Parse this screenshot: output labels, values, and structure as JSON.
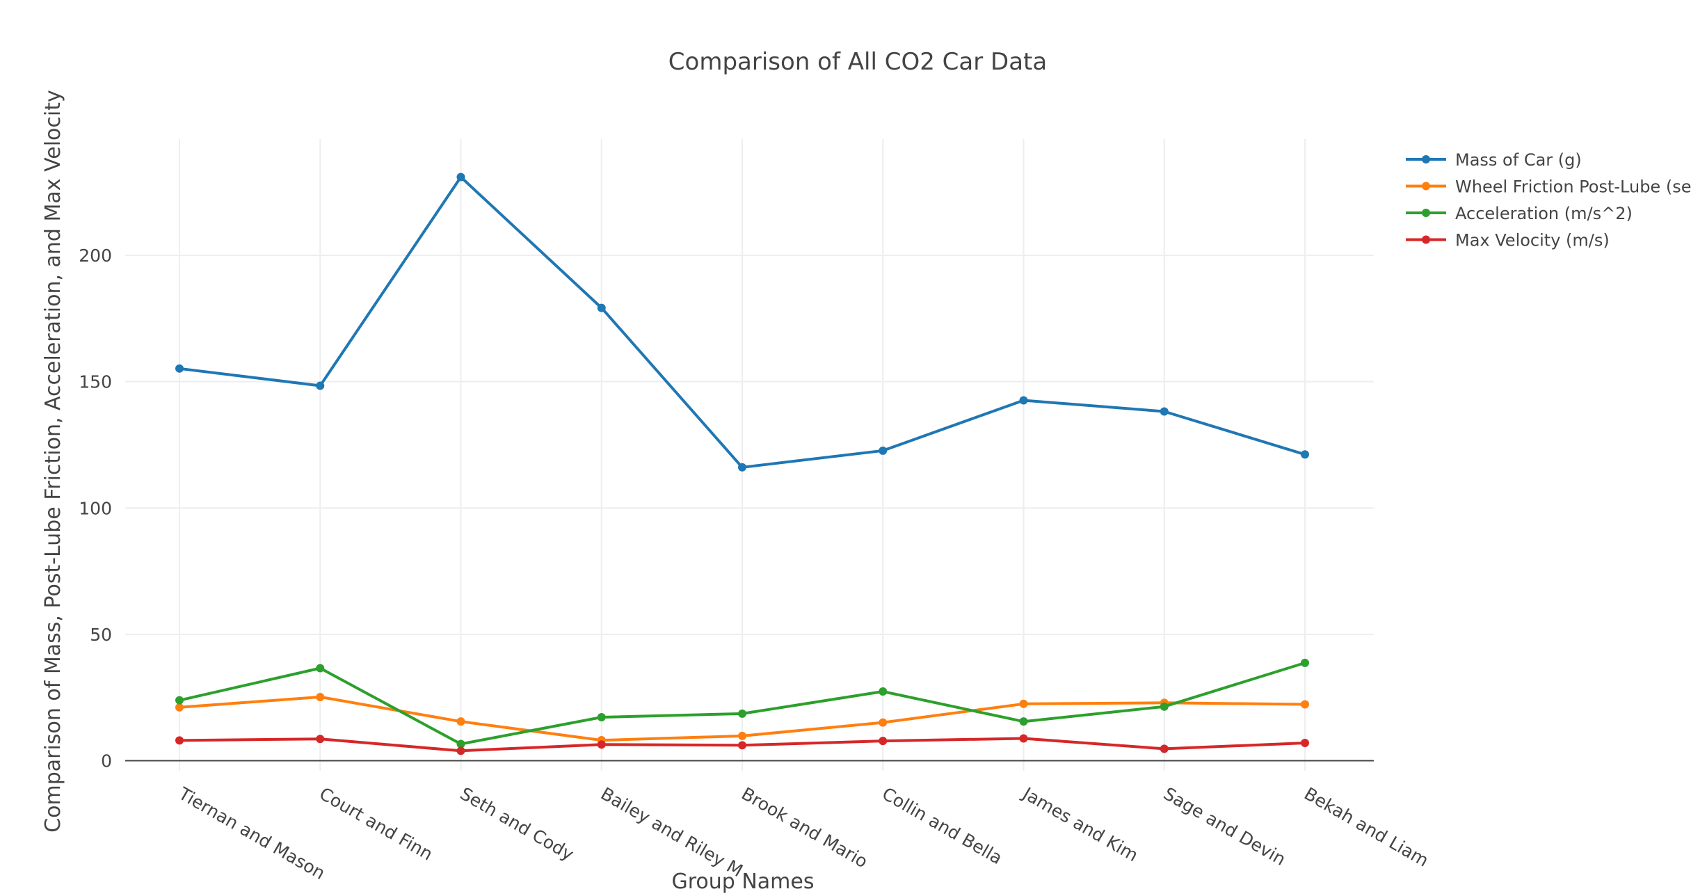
{
  "chart_data": {
    "type": "line",
    "title": "Comparison of All CO2 Car Data",
    "xlabel": "Group Names",
    "ylabel": "Comparison of Mass, Post-Lube Friction, Acceleration, and Max Velocity",
    "categories": [
      "Tiernan and Mason",
      "Court and Finn",
      "Seth and Cody",
      "Bailey and Riley M",
      "Brook and Mario",
      "Collin and Bella",
      "James and Kim",
      "Sage and Devin",
      "Bekah and Liam"
    ],
    "ylim": [
      -4,
      246
    ],
    "yticks": [
      0,
      50,
      100,
      150,
      200
    ],
    "grid": true,
    "legend_position": "top-right",
    "series": [
      {
        "name": "Mass of Car (g)",
        "color": "#1f77b4",
        "values": [
          155.2,
          148.4,
          231.0,
          179.2,
          116.1,
          122.7,
          142.6,
          138.2,
          121.2
        ]
      },
      {
        "name": "Wheel Friction Post-Lube (se",
        "color": "#ff7f0e",
        "values": [
          21.1,
          25.2,
          15.5,
          8.1,
          9.8,
          15.1,
          22.5,
          22.9,
          22.3
        ]
      },
      {
        "name": "Acceleration (m/s^2)",
        "color": "#2ca02c",
        "values": [
          23.9,
          36.6,
          6.6,
          17.2,
          18.6,
          27.4,
          15.5,
          21.4,
          38.7
        ]
      },
      {
        "name": "Max Velocity (m/s)",
        "color": "#d62728",
        "values": [
          8.0,
          8.6,
          3.9,
          6.4,
          6.1,
          7.8,
          8.8,
          4.7,
          7.0
        ]
      }
    ]
  }
}
